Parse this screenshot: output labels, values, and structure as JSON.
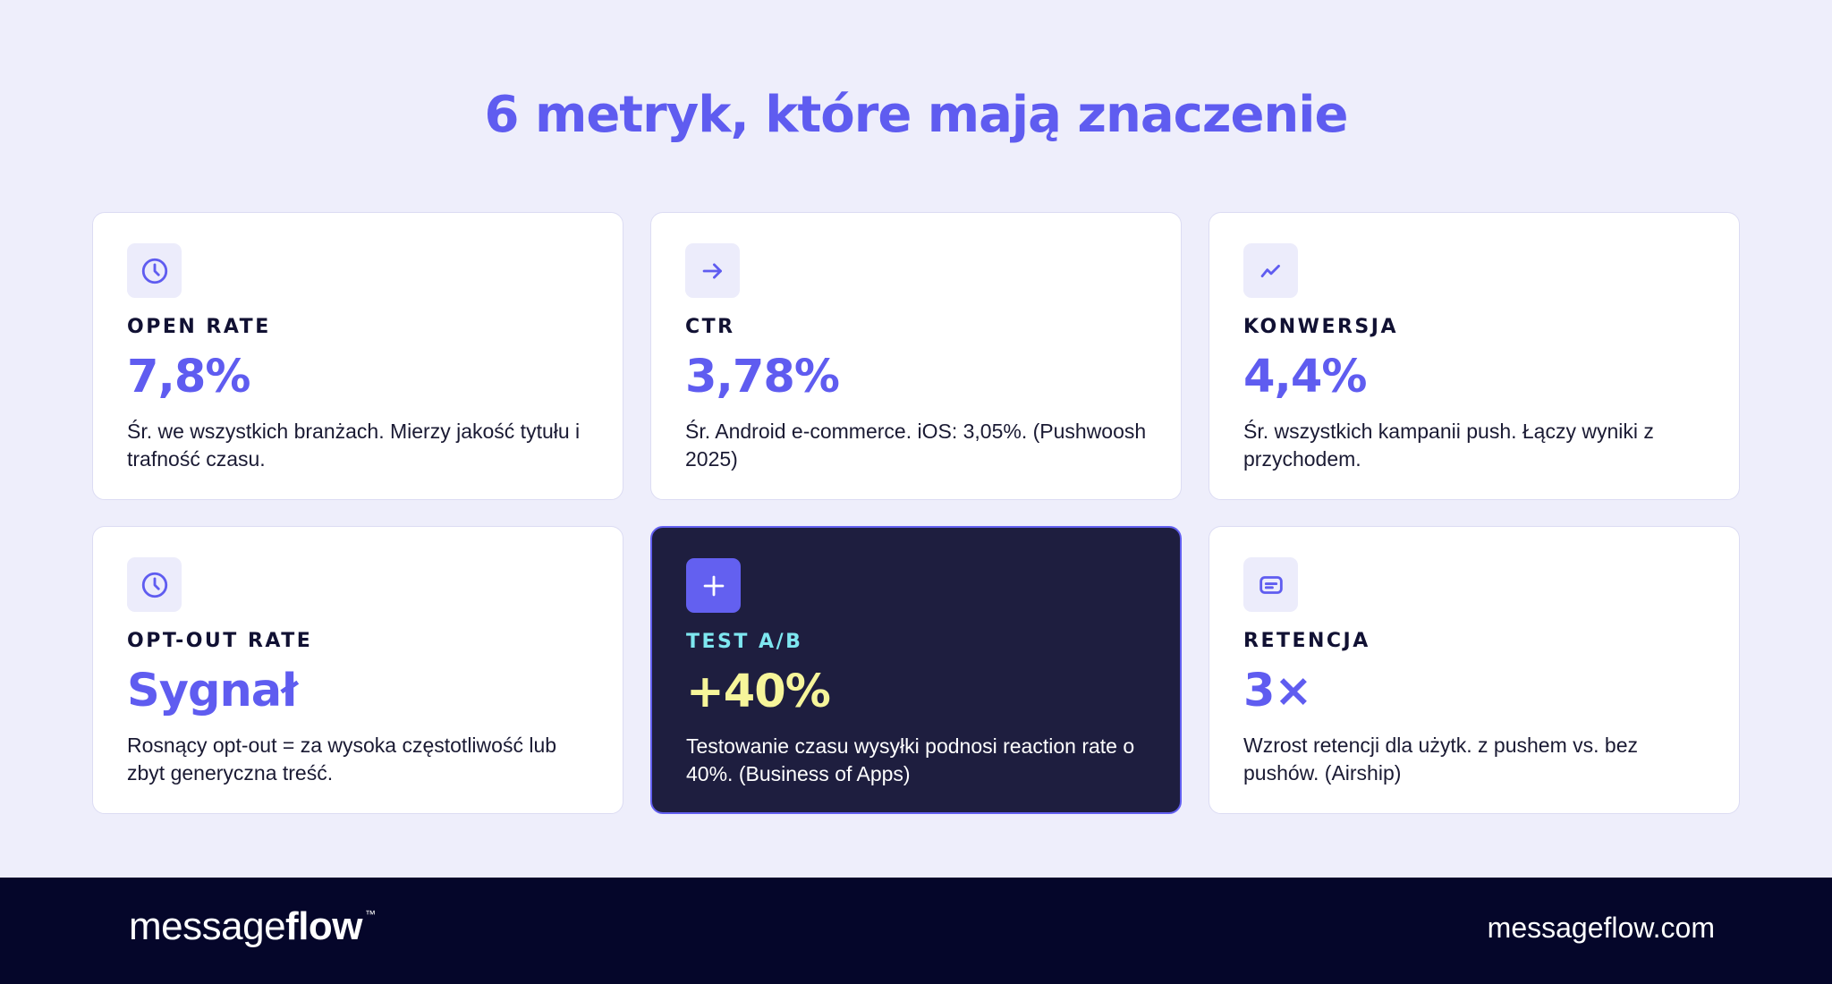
{
  "title": "6 metryk, które mają znaczenie",
  "colors": {
    "accent": "#5F5CF0",
    "background": "#EEEEFB",
    "dark_card": "#1E1E3F",
    "dark_label": "#7EE7F0",
    "dark_value": "#F6F59A",
    "footer": "#05062A"
  },
  "cards": [
    {
      "icon": "clock-icon",
      "label": "OPEN RATE",
      "value": "7,8%",
      "desc": "Śr. we wszystkich branżach. Mierzy jakość tytułu i trafność czasu."
    },
    {
      "icon": "arrow-right-icon",
      "label": "CTR",
      "value": "3,78%",
      "desc": "Śr. Android e-commerce. iOS: 3,05%. (Pushwoosh 2025)"
    },
    {
      "icon": "trend-up-icon",
      "label": "KONWERSJA",
      "value": "4,4%",
      "desc": "Śr. wszystkich kampanii push. Łączy wyniki z przychodem."
    },
    {
      "icon": "clock-icon",
      "label": "OPT-OUT RATE",
      "value": "Sygnał",
      "desc": "Rosnący opt-out = za wysoka częstotliwość lub zbyt generyczna treść."
    },
    {
      "icon": "plus-icon",
      "label": "TEST A/B",
      "value": "+40%",
      "desc": "Testowanie czasu wysyłki podnosi reaction rate o 40%. (Business of Apps)",
      "highlighted": true
    },
    {
      "icon": "message-icon",
      "label": "RETENCJA",
      "value": "3×",
      "desc": "Wzrost retencji dla użytk. z pushem vs. bez pushów. (Airship)"
    }
  ],
  "footer": {
    "logo_light": "message",
    "logo_bold": "flow",
    "logo_tm": "™",
    "website": "messageflow.com"
  }
}
